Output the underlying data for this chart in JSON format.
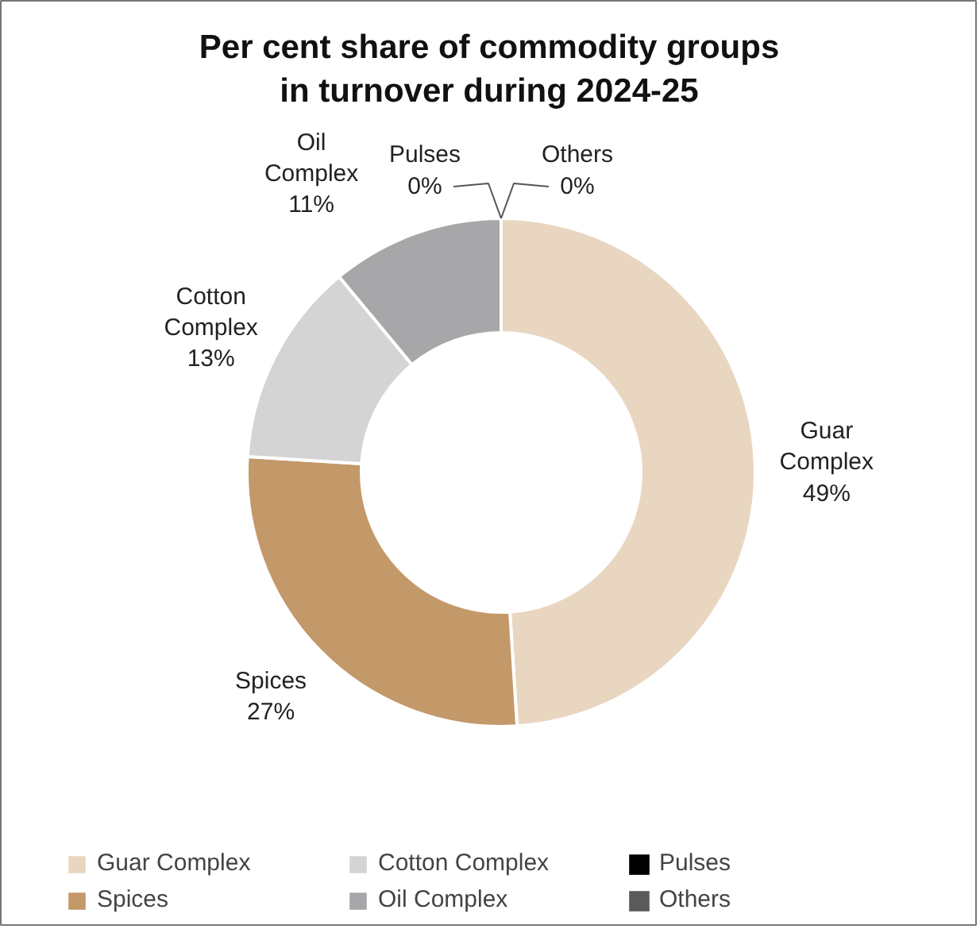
{
  "chart_data": {
    "type": "donut",
    "title": "Per cent share of commodity groups in turnover during 2024-25",
    "categories": [
      "Guar Complex",
      "Spices",
      "Cotton Complex",
      "Oil Complex",
      "Pulses",
      "Others"
    ],
    "values": [
      49,
      27,
      13,
      11,
      0,
      0
    ],
    "colors": [
      "#e9d6c1",
      "#c3996a",
      "#d4d4d5",
      "#a7a7aa",
      "#000000",
      "#5a5a5a"
    ],
    "value_labels": [
      "49%",
      "27%",
      "13%",
      "11%",
      "0%",
      "0%"
    ],
    "legend": "bottom"
  }
}
